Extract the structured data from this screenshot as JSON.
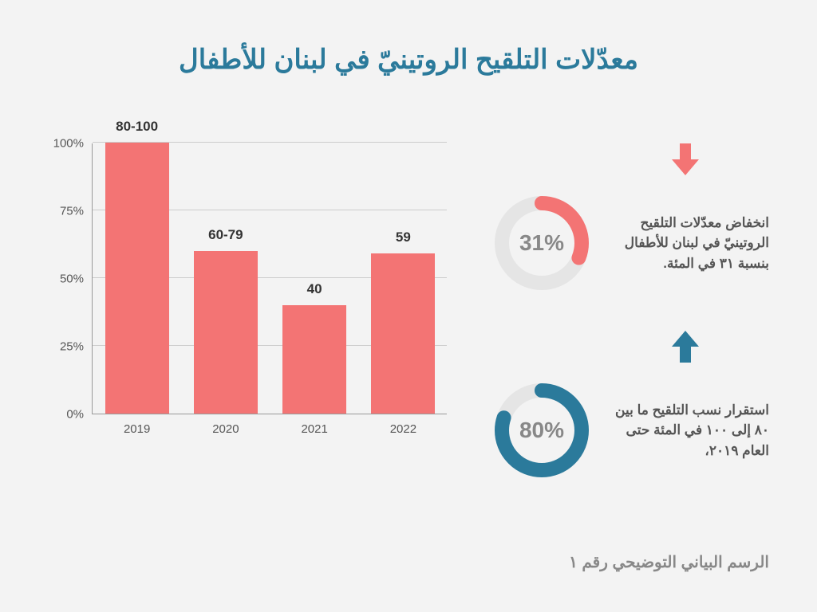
{
  "title": "معدّلات التلقيح الروتينيّ في لبنان للأطفال",
  "chart": {
    "type": "bar",
    "categories": [
      "2019",
      "2020",
      "2021",
      "2022"
    ],
    "values": [
      100,
      60,
      40,
      59
    ],
    "value_labels": [
      "80-100",
      "60-79",
      "40",
      "59"
    ],
    "bar_color": "#f37474",
    "ylim": [
      0,
      100
    ],
    "ytick_step": 25,
    "y_labels": [
      "0%",
      "25%",
      "50%",
      "75%",
      "100%"
    ],
    "grid_color": "#cccccc",
    "axis_color": "#999999",
    "background": "#f3f3f3",
    "bar_width_pct": 18
  },
  "stats": [
    {
      "percent": 31,
      "percent_label": "31%",
      "text": "انخفاض معدّلات التلقيح الروتينيّ في لبنان للأطفال بنسبة ٣١ في المئة.",
      "color": "#f37474",
      "arrow": "down"
    },
    {
      "percent": 80,
      "percent_label": "80%",
      "text": "استقرار نسب التلقيح ما بين ٨٠ إلى ١٠٠ في المئة حتى العام ٢٠١٩،",
      "color": "#2b7a9b",
      "arrow": "up"
    }
  ],
  "caption": "الرسم البياني التوضيحي رقم ١",
  "colors": {
    "title": "#2b7a9b",
    "text": "#555555",
    "label_bold": "#333333",
    "donut_bg": "#e5e5e5",
    "donut_text": "#888888"
  }
}
